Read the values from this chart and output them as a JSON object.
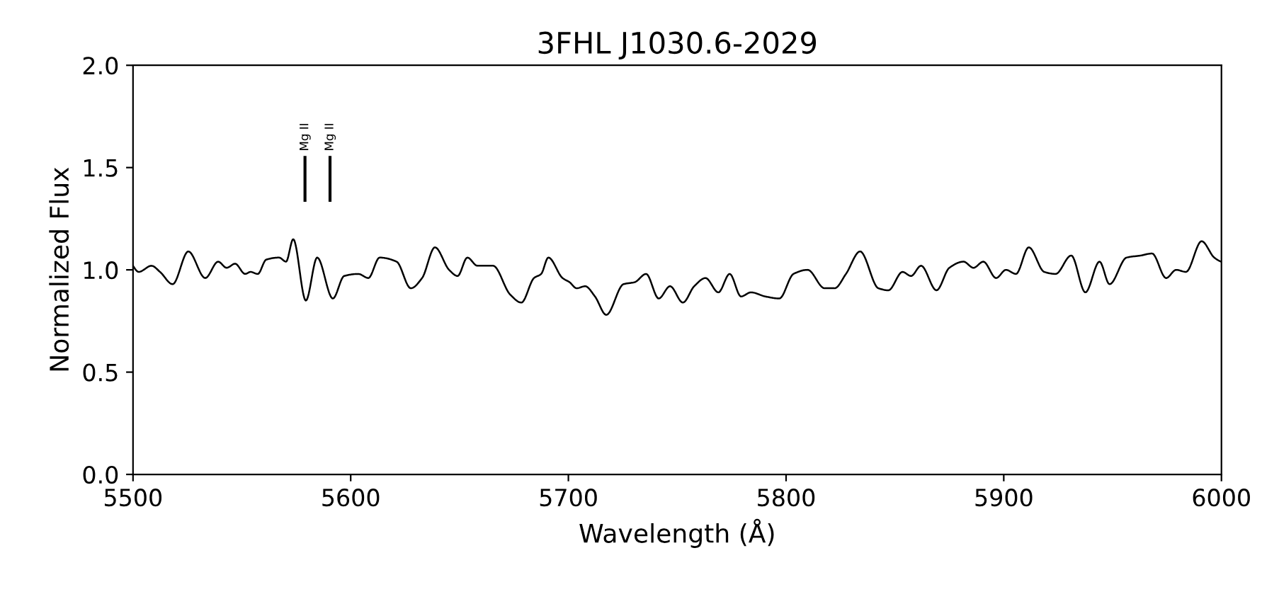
{
  "chart_data": {
    "type": "line",
    "title": "3FHL J1030.6-2029",
    "xlabel": "Wavelength (Å)",
    "ylabel": "Normalized Flux",
    "xlim": [
      5500,
      6000
    ],
    "xticks": [
      5500,
      5600,
      5700,
      5800,
      5900,
      6000
    ],
    "ylim": [
      0.0,
      2.0
    ],
    "yticks": [
      {
        "value": 0.0,
        "label": "0.0"
      },
      {
        "value": 0.5,
        "label": "0.5"
      },
      {
        "value": 1.0,
        "label": "1.0"
      },
      {
        "value": 1.5,
        "label": "1.5"
      },
      {
        "value": 2.0,
        "label": "2.0"
      }
    ],
    "grid": false,
    "legend": false,
    "ref_lines": [
      {
        "axis": "x",
        "value": 5579,
        "label": "Mg II",
        "color": "#000000"
      },
      {
        "axis": "x",
        "value": 5590.5,
        "label": "Mg II",
        "color": "#000000"
      }
    ],
    "series": [
      {
        "color": "#000000",
        "x": [
          5500,
          5502.6,
          5508.5,
          5512.4,
          5518.2,
          5525.4,
          5533.2,
          5539.1,
          5543.0,
          5546.9,
          5551.5,
          5554.0,
          5557.3,
          5561.2,
          5567.1,
          5570.3,
          5573.6,
          5579.4,
          5584.6,
          5591.8,
          5597.0,
          5603.5,
          5608.1,
          5613.3,
          5621.1,
          5627.6,
          5632.8,
          5638.7,
          5645.2,
          5649.1,
          5653.6,
          5658.2,
          5665.4,
          5673.2,
          5678.4,
          5684.2,
          5687.5,
          5690.8,
          5697.3,
          5700.5,
          5703.8,
          5707.7,
          5712.2,
          5717.4,
          5725.3,
          5730.5,
          5735.7,
          5741.5,
          5746.7,
          5752.6,
          5757.8,
          5763.0,
          5768.9,
          5774.1,
          5779.3,
          5783.9,
          5790.4,
          5796.9,
          5803.4,
          5809.9,
          5817.7,
          5822.3,
          5827.5,
          5834.0,
          5842.4,
          5847.0,
          5853.5,
          5857.4,
          5862.0,
          5869.1,
          5875.0,
          5881.5,
          5886.1,
          5890.6,
          5896.5,
          5901.0,
          5905.6,
          5911.5,
          5918.6,
          5923.8,
          5931.0,
          5937.5,
          5944.0,
          5948.6,
          5956.4,
          5962.9,
          5968.1,
          5974.6,
          5979.2,
          5983.7,
          5990.9,
          5996.7,
          6000
        ],
        "values": [
          1.02,
          0.99,
          1.02,
          0.99,
          0.93,
          1.09,
          0.96,
          1.04,
          1.01,
          1.03,
          0.98,
          0.99,
          0.98,
          1.05,
          1.06,
          1.04,
          1.15,
          0.85,
          1.06,
          0.86,
          0.97,
          0.98,
          0.96,
          1.06,
          1.04,
          0.91,
          0.96,
          1.11,
          1.0,
          0.97,
          1.06,
          1.02,
          1.02,
          0.88,
          0.84,
          0.96,
          0.98,
          1.06,
          0.96,
          0.94,
          0.91,
          0.92,
          0.87,
          0.78,
          0.93,
          0.94,
          0.98,
          0.86,
          0.92,
          0.84,
          0.92,
          0.96,
          0.89,
          0.98,
          0.87,
          0.89,
          0.87,
          0.86,
          0.98,
          1.0,
          0.91,
          0.91,
          0.98,
          1.09,
          0.91,
          0.9,
          0.99,
          0.97,
          1.02,
          0.9,
          1.01,
          1.04,
          1.01,
          1.04,
          0.96,
          1.0,
          0.98,
          1.11,
          0.99,
          0.98,
          1.07,
          0.89,
          1.04,
          0.93,
          1.06,
          1.07,
          1.08,
          0.96,
          1.0,
          0.99,
          1.14,
          1.06,
          1.04
        ]
      }
    ]
  }
}
